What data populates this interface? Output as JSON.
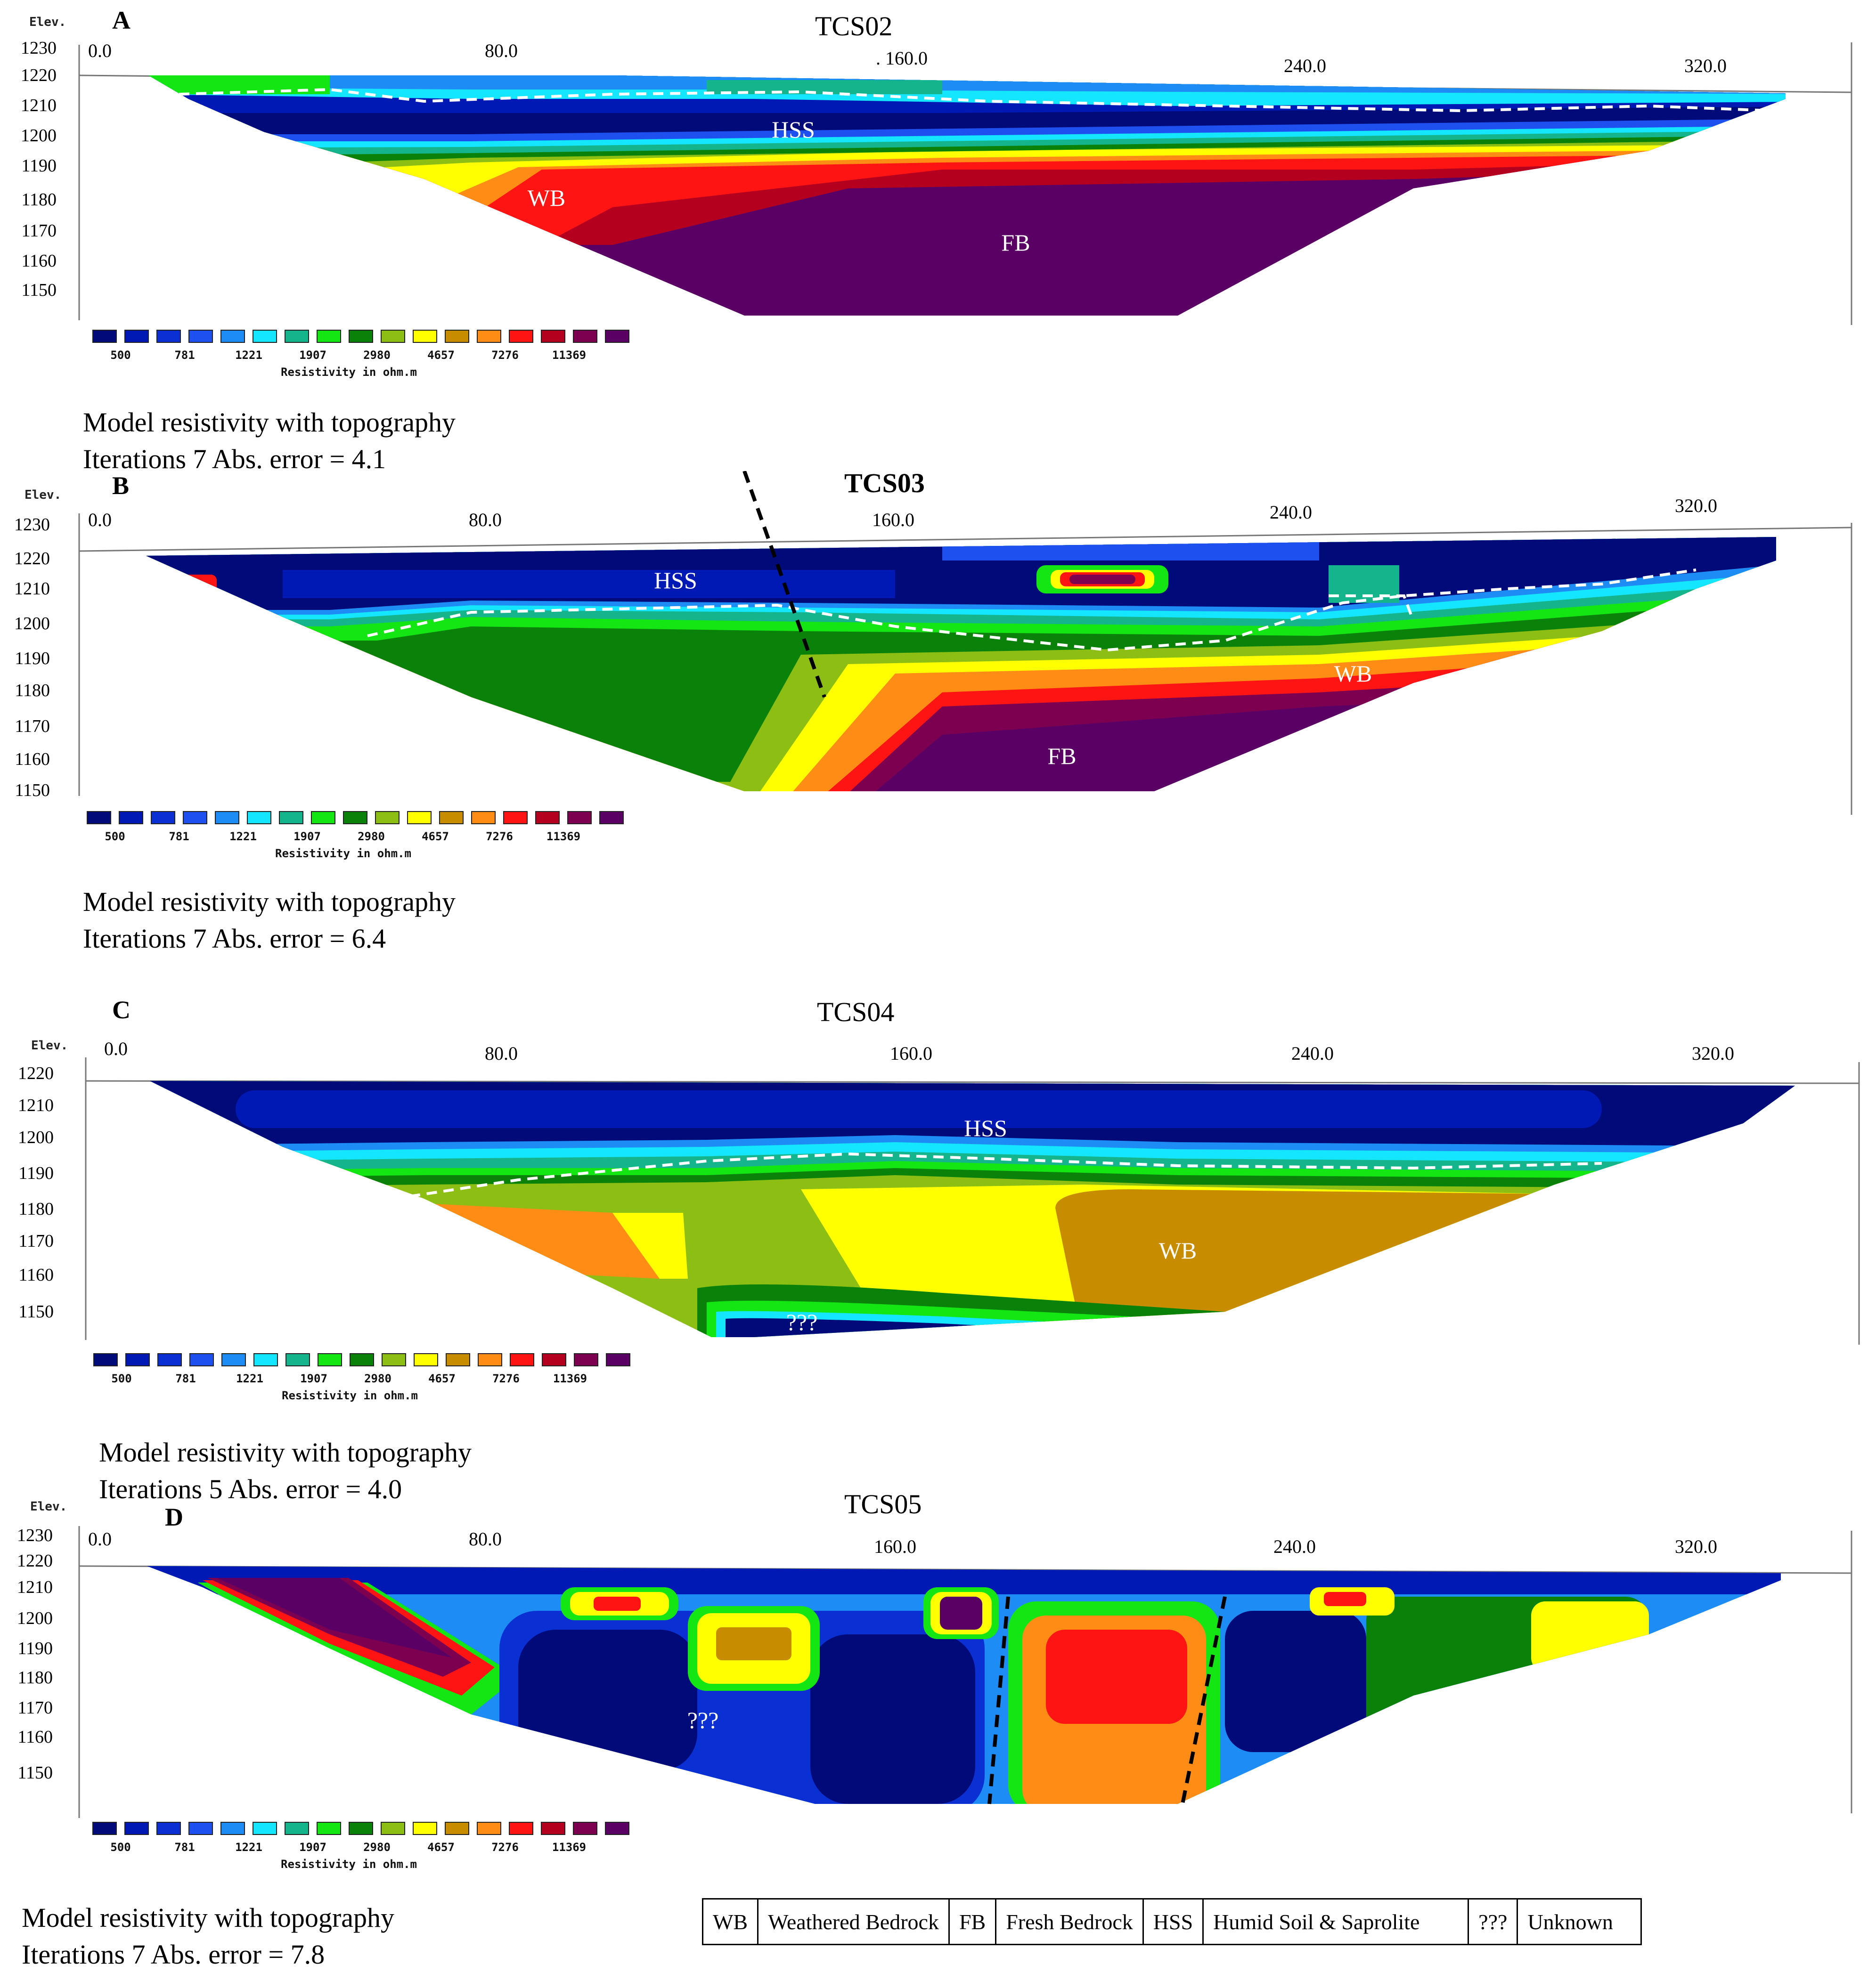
{
  "legend": {
    "colors": [
      "#000a78",
      "#0019b4",
      "#0a2fd2",
      "#1e50f0",
      "#1e8cf5",
      "#14e6ff",
      "#14b48c",
      "#14e614",
      "#0a820a",
      "#8cbe14",
      "#ffff00",
      "#c88c00",
      "#ff8c14",
      "#ff1414",
      "#b4001e",
      "#7d0050",
      "#5a0064"
    ],
    "values": [
      "500",
      "781",
      "1221",
      "1907",
      "2980",
      "4657",
      "7276",
      "11369"
    ],
    "title": "Resistivity in ohm.m"
  },
  "panels": [
    {
      "letter": "A",
      "title": "TCS02",
      "elev_label": "Elev.",
      "y_ticks": [
        "1230",
        "1220",
        "1210",
        "1200",
        "1190",
        "1180",
        "1170",
        "1160",
        "1150"
      ],
      "x_ticks": [
        "0.0",
        "80.0",
        ". 160.0",
        "240.0",
        "320.0"
      ],
      "zones": [
        "HSS",
        "WB",
        "FB"
      ],
      "caption_line1": "Model resistivity with topography",
      "caption_line2": "Iterations 7 Abs. error = 4.1"
    },
    {
      "letter": "B",
      "title": "TCS03",
      "elev_label": "Elev.",
      "y_ticks": [
        "1230",
        "1220",
        "1210",
        "1200",
        "1190",
        "1180",
        "1170",
        "1160",
        "1150"
      ],
      "x_ticks": [
        "0.0",
        "80.0",
        "160.0",
        "240.0",
        "320.0"
      ],
      "zones": [
        "HSS",
        "WB",
        "FB"
      ],
      "caption_line1": "Model resistivity with topography",
      "caption_line2": "Iterations 7 Abs. error = 6.4"
    },
    {
      "letter": "C",
      "title": "TCS04",
      "elev_label": "Elev.",
      "y_ticks": [
        "1220",
        "1210",
        "1200",
        "1190",
        "1180",
        "1170",
        "1160",
        "1150"
      ],
      "x_ticks": [
        "0.0",
        "80.0",
        "160.0",
        "240.0",
        "320.0"
      ],
      "zones": [
        "HSS",
        "WB",
        "???"
      ],
      "caption_line1": "Model resistivity with topography",
      "caption_line2": "Iterations 5 Abs. error = 4.0"
    },
    {
      "letter": "D",
      "title": "TCS05",
      "elev_label": "Elev.",
      "y_ticks": [
        "1230",
        "1220",
        "1210",
        "1200",
        "1190",
        "1180",
        "1170",
        "1160",
        "1150"
      ],
      "x_ticks": [
        "0.0",
        "80.0",
        "160.0",
        "240.0",
        "320.0"
      ],
      "zones": [
        "???"
      ],
      "caption_line1": "Model resistivity with topography",
      "caption_line2": "Iterations 7 Abs. error = 7.8"
    }
  ],
  "key": [
    {
      "code": "WB",
      "desc": "Weathered Bedrock"
    },
    {
      "code": "FB",
      "desc": "Fresh Bedrock"
    },
    {
      "code": "HSS",
      "desc": "Humid Soil & Saprolite"
    },
    {
      "code": "???",
      "desc": "Unknown"
    }
  ]
}
